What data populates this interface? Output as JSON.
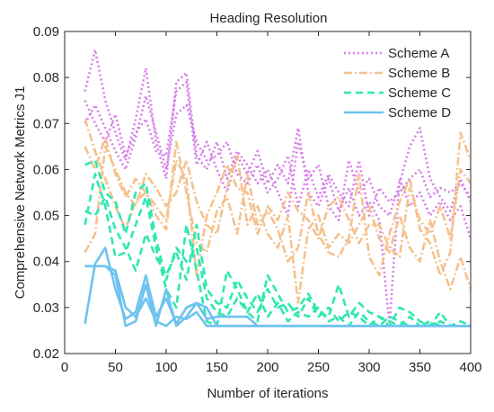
{
  "chart_data": {
    "type": "line",
    "title": "Heading Resolution",
    "xlabel": "Number of iterations",
    "ylabel": "Comprehensive Network Metrics J1",
    "xlim": [
      0,
      400
    ],
    "ylim": [
      0.02,
      0.09
    ],
    "xticks": [
      0,
      50,
      100,
      150,
      200,
      250,
      300,
      350,
      400
    ],
    "yticks": [
      0.02,
      0.03,
      0.04,
      0.05,
      0.06,
      0.07,
      0.08,
      0.09
    ],
    "xtick_labels": [
      "0",
      "50",
      "100",
      "150",
      "200",
      "250",
      "300",
      "350",
      "400"
    ],
    "ytick_labels": [
      "0.02",
      "0.03",
      "0.04",
      "0.05",
      "0.06",
      "0.07",
      "0.08",
      "0.09"
    ],
    "grid": false,
    "legend_position": "top-right",
    "x": [
      20,
      30,
      40,
      50,
      60,
      70,
      80,
      90,
      100,
      110,
      120,
      130,
      140,
      150,
      160,
      170,
      180,
      190,
      200,
      210,
      220,
      230,
      240,
      250,
      260,
      270,
      280,
      290,
      300,
      310,
      320,
      330,
      340,
      350,
      360,
      370,
      380,
      390,
      400
    ],
    "series": [
      {
        "name": "Scheme A",
        "color": "#d67ee8",
        "dash": "2,3",
        "runs": [
          [
            0.077,
            0.086,
            0.075,
            0.068,
            0.062,
            0.071,
            0.082,
            0.066,
            0.058,
            0.079,
            0.081,
            0.063,
            0.06,
            0.066,
            0.058,
            0.064,
            0.061,
            0.057,
            0.06,
            0.055,
            0.05,
            0.066,
            0.058,
            0.061,
            0.052,
            0.049,
            0.062,
            0.055,
            0.058,
            0.052,
            0.05,
            0.057,
            0.065,
            0.069,
            0.058,
            0.054,
            0.051,
            0.058,
            0.053
          ],
          [
            0.07,
            0.074,
            0.069,
            0.064,
            0.06,
            0.067,
            0.076,
            0.068,
            0.06,
            0.072,
            0.074,
            0.066,
            0.062,
            0.063,
            0.066,
            0.059,
            0.057,
            0.061,
            0.055,
            0.058,
            0.063,
            0.052,
            0.06,
            0.054,
            0.059,
            0.055,
            0.052,
            0.062,
            0.05,
            0.056,
            0.053,
            0.055,
            0.058,
            0.06,
            0.054,
            0.056,
            0.055,
            0.057,
            0.054
          ],
          [
            0.075,
            0.07,
            0.066,
            0.072,
            0.063,
            0.068,
            0.071,
            0.064,
            0.063,
            0.077,
            0.079,
            0.061,
            0.066,
            0.06,
            0.055,
            0.063,
            0.059,
            0.064,
            0.057,
            0.061,
            0.057,
            0.069,
            0.055,
            0.052,
            0.058,
            0.051,
            0.056,
            0.05,
            0.053,
            0.049,
            0.026,
            0.058,
            0.052,
            0.055,
            0.05,
            0.053,
            0.049,
            0.052,
            0.045
          ]
        ]
      },
      {
        "name": "Scheme B",
        "color": "#f4c28e",
        "dash": "9,3,2,3",
        "runs": [
          [
            0.071,
            0.064,
            0.058,
            0.052,
            0.047,
            0.053,
            0.055,
            0.05,
            0.047,
            0.066,
            0.055,
            0.044,
            0.042,
            0.051,
            0.054,
            0.046,
            0.059,
            0.048,
            0.051,
            0.047,
            0.04,
            0.043,
            0.055,
            0.046,
            0.042,
            0.041,
            0.045,
            0.059,
            0.041,
            0.037,
            0.046,
            0.053,
            0.058,
            0.047,
            0.044,
            0.037,
            0.042,
            0.068,
            0.062
          ],
          [
            0.042,
            0.046,
            0.065,
            0.06,
            0.055,
            0.052,
            0.059,
            0.056,
            0.052,
            0.055,
            0.062,
            0.053,
            0.048,
            0.046,
            0.056,
            0.063,
            0.048,
            0.052,
            0.046,
            0.043,
            0.05,
            0.031,
            0.047,
            0.05,
            0.043,
            0.046,
            0.044,
            0.048,
            0.052,
            0.045,
            0.042,
            0.05,
            0.043,
            0.04,
            0.049,
            0.04,
            0.034,
            0.041,
            0.034
          ],
          [
            0.065,
            0.06,
            0.067,
            0.059,
            0.054,
            0.058,
            0.055,
            0.052,
            0.049,
            0.062,
            0.058,
            0.037,
            0.05,
            0.055,
            0.061,
            0.056,
            0.055,
            0.046,
            0.052,
            0.049,
            0.055,
            0.051,
            0.049,
            0.045,
            0.052,
            0.054,
            0.049,
            0.044,
            0.048,
            0.048,
            0.043,
            0.041,
            0.056,
            0.049,
            0.046,
            0.052,
            0.045,
            0.06,
            0.057
          ]
        ]
      },
      {
        "name": "Scheme C",
        "color": "#2ee8b0",
        "dash": "8,5",
        "runs": [
          [
            0.048,
            0.059,
            0.052,
            0.041,
            0.042,
            0.048,
            0.054,
            0.043,
            0.034,
            0.03,
            0.048,
            0.038,
            0.027,
            0.026,
            0.038,
            0.034,
            0.029,
            0.027,
            0.037,
            0.033,
            0.029,
            0.03,
            0.033,
            0.029,
            0.028,
            0.035,
            0.028,
            0.031,
            0.029,
            0.028,
            0.026,
            0.03,
            0.029,
            0.027,
            0.026,
            0.029,
            0.026,
            0.027,
            0.026
          ],
          [
            0.061,
            0.062,
            0.055,
            0.053,
            0.046,
            0.055,
            0.057,
            0.045,
            0.036,
            0.043,
            0.04,
            0.043,
            0.032,
            0.029,
            0.028,
            0.032,
            0.029,
            0.033,
            0.028,
            0.031,
            0.027,
            0.029,
            0.028,
            0.03,
            0.027,
            0.028,
            0.026,
            0.029,
            0.027,
            0.026,
            0.028,
            0.027,
            0.026,
            0.026,
            0.027,
            0.026,
            0.026,
            0.026,
            0.026
          ],
          [
            0.051,
            0.05,
            0.054,
            0.047,
            0.043,
            0.038,
            0.046,
            0.041,
            0.037,
            0.042,
            0.036,
            0.048,
            0.034,
            0.031,
            0.03,
            0.036,
            0.032,
            0.029,
            0.034,
            0.03,
            0.031,
            0.028,
            0.032,
            0.028,
            0.03,
            0.027,
            0.029,
            0.028,
            0.026,
            0.028,
            0.027,
            0.026,
            0.028,
            0.026,
            0.026,
            0.027,
            0.026,
            0.026,
            0.026
          ]
        ]
      },
      {
        "name": "Scheme D",
        "color": "#6ec3f0",
        "dash": "",
        "runs": [
          [
            0.0265,
            0.0395,
            0.043,
            0.034,
            0.0275,
            0.029,
            0.037,
            0.028,
            0.032,
            0.0265,
            0.03,
            0.031,
            0.0275,
            0.028,
            0.028,
            0.028,
            0.028,
            0.026,
            0.026,
            0.026,
            0.026,
            0.026,
            0.026,
            0.026,
            0.026,
            0.026,
            0.026,
            0.026,
            0.026,
            0.026,
            0.026,
            0.026,
            0.026,
            0.026,
            0.026,
            0.026,
            0.026,
            0.026,
            0.026
          ],
          [
            0.039,
            0.039,
            0.039,
            0.037,
            0.026,
            0.027,
            0.035,
            0.026,
            0.034,
            0.026,
            0.028,
            0.031,
            0.03,
            0.026,
            0.026,
            0.026,
            0.026,
            0.026,
            0.026,
            0.026,
            0.026,
            0.026,
            0.026,
            0.026,
            0.026,
            0.026,
            0.026,
            0.026,
            0.026,
            0.026,
            0.026,
            0.026,
            0.026,
            0.026,
            0.026,
            0.026,
            0.026,
            0.026,
            0.026
          ],
          [
            0.039,
            0.039,
            0.039,
            0.038,
            0.03,
            0.028,
            0.032,
            0.027,
            0.026,
            0.028,
            0.0275,
            0.029,
            0.026,
            0.026,
            0.026,
            0.026,
            0.026,
            0.026,
            0.026,
            0.026,
            0.026,
            0.026,
            0.026,
            0.026,
            0.026,
            0.026,
            0.026,
            0.026,
            0.026,
            0.026,
            0.026,
            0.026,
            0.026,
            0.026,
            0.026,
            0.026,
            0.026,
            0.026,
            0.026
          ]
        ]
      }
    ]
  }
}
